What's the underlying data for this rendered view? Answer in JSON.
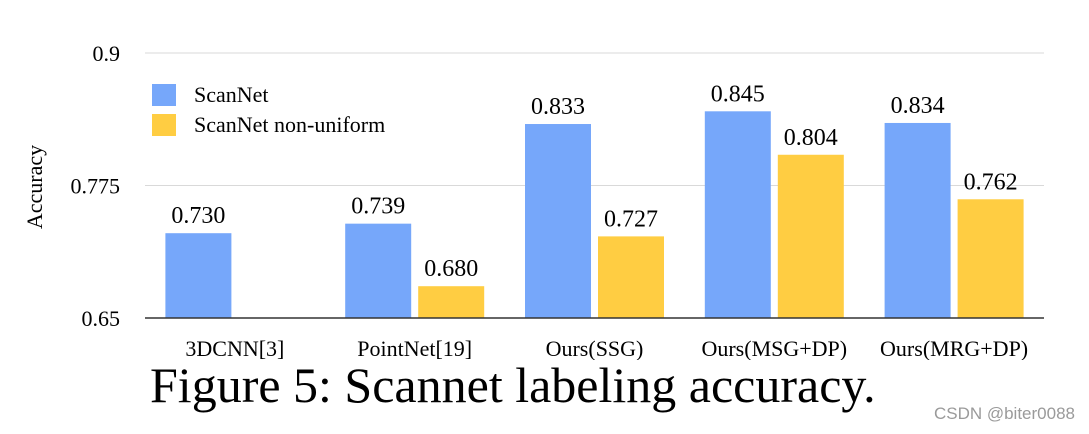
{
  "chart_data": {
    "type": "bar",
    "title": "",
    "xlabel": "",
    "ylabel": "Accuracy",
    "ylim": [
      0.65,
      0.9
    ],
    "yticks": [
      "0.65",
      "0.775",
      "0.9"
    ],
    "grid": true,
    "legend_position": "top-left",
    "categories": [
      "3DCNN[3]",
      "PointNet[19]",
      "Ours(SSG)",
      "Ours(MSG+DP)",
      "Ours(MRG+DP)"
    ],
    "series": [
      {
        "name": "ScanNet",
        "color": "#76a7fa",
        "values": [
          0.73,
          0.739,
          0.833,
          0.845,
          0.834
        ],
        "labels": [
          "0.730",
          "0.739",
          "0.833",
          "0.845",
          "0.834"
        ]
      },
      {
        "name": "ScanNet non-uniform",
        "color": "#ffcd42",
        "values": [
          null,
          0.68,
          0.727,
          0.804,
          0.762
        ],
        "labels": [
          "",
          "0.680",
          "0.727",
          "0.804",
          "0.762"
        ]
      }
    ]
  },
  "caption": "Figure 5: Scannet labeling accuracy.",
  "watermark": "CSDN @biter0088"
}
